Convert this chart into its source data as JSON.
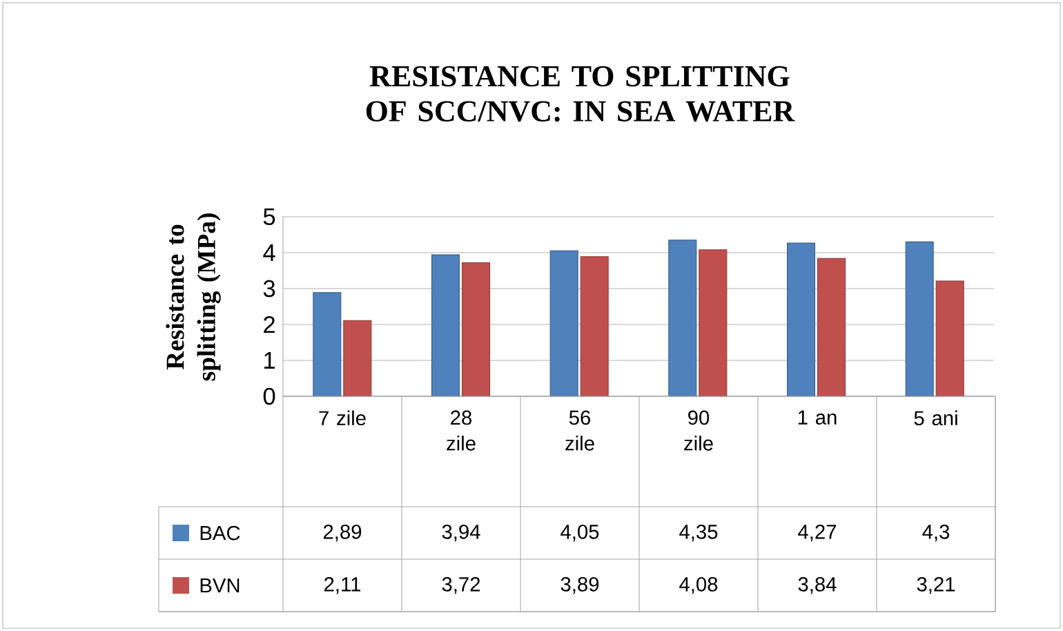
{
  "chart_data": {
    "type": "bar",
    "title": "RESISTANCE TO SPLITTING OF SCC/NVC: IN SEA WATER",
    "ylabel": "Resistance to splitting (MPa)",
    "categories": [
      "7 zile",
      "28 zile",
      "56 zile",
      "90 zile",
      "1 an",
      "5 ani"
    ],
    "series": [
      {
        "name": "BAC",
        "color": "#4f81bd",
        "values": [
          2.89,
          3.94,
          4.05,
          4.35,
          4.27,
          4.3
        ],
        "value_labels": [
          "2,89",
          "3,94",
          "4,05",
          "4,35",
          "4,27",
          "4,3"
        ]
      },
      {
        "name": "BVN",
        "color": "#c0504d",
        "values": [
          2.11,
          3.72,
          3.89,
          4.08,
          3.84,
          3.21
        ],
        "value_labels": [
          "2,11",
          "3,72",
          "3,89",
          "4,08",
          "3,84",
          "3,21"
        ]
      }
    ],
    "ylim": [
      0,
      5
    ],
    "yticks": [
      0,
      1,
      2,
      3,
      4,
      5
    ],
    "grid": "y",
    "legend": "bottom"
  }
}
